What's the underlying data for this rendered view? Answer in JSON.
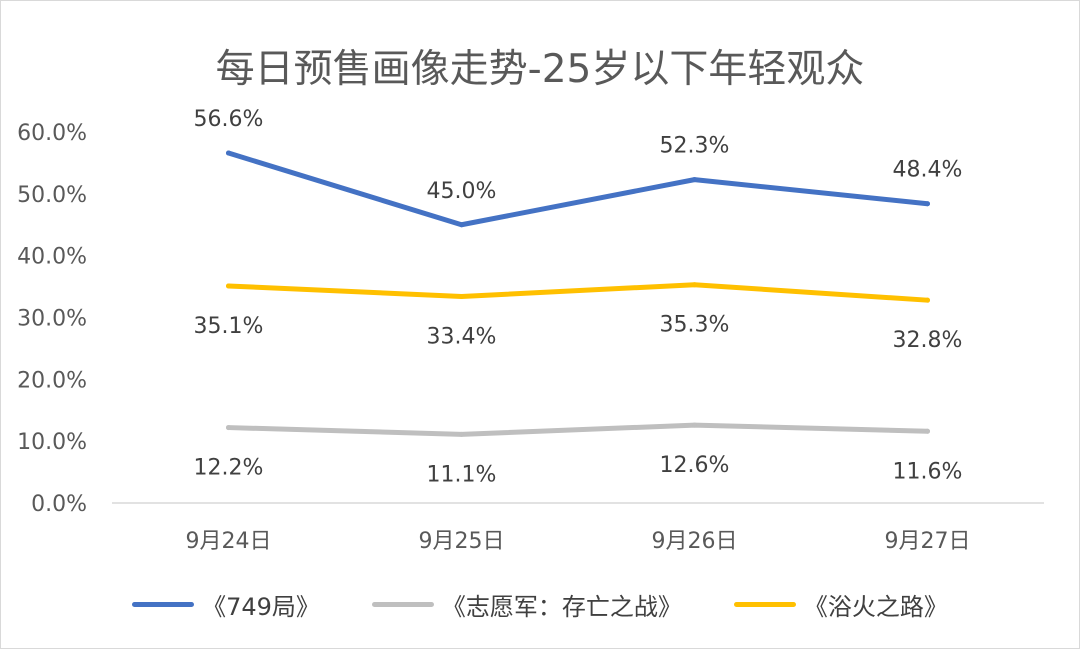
{
  "chart_data": {
    "type": "line",
    "title": "每日预售画像走势-25岁以下年轻观众",
    "categories": [
      "9月24日",
      "9月25日",
      "9月26日",
      "9月27日"
    ],
    "series": [
      {
        "name": "《749局》",
        "values": [
          56.6,
          45.0,
          52.3,
          48.4
        ],
        "color": "#4472c4",
        "labels": [
          "56.6%",
          "45.0%",
          "52.3%",
          "48.4%"
        ],
        "label_position": "above"
      },
      {
        "name": "《志愿军：存亡之战》",
        "values": [
          12.2,
          11.1,
          12.6,
          11.6
        ],
        "color": "#bfbfbf",
        "labels": [
          "12.2%",
          "11.1%",
          "12.6%",
          "11.6%"
        ],
        "label_position": "below"
      },
      {
        "name": "《浴火之路》",
        "values": [
          35.1,
          33.4,
          35.3,
          32.8
        ],
        "color": "#ffc000",
        "labels": [
          "35.1%",
          "33.4%",
          "35.3%",
          "32.8%"
        ],
        "label_position": "below"
      }
    ],
    "y_ticks": [
      "0.0%",
      "10.0%",
      "20.0%",
      "30.0%",
      "40.0%",
      "50.0%",
      "60.0%"
    ],
    "ylim": [
      0,
      60
    ],
    "unit": "%",
    "grid": false,
    "legend_position": "bottom"
  }
}
